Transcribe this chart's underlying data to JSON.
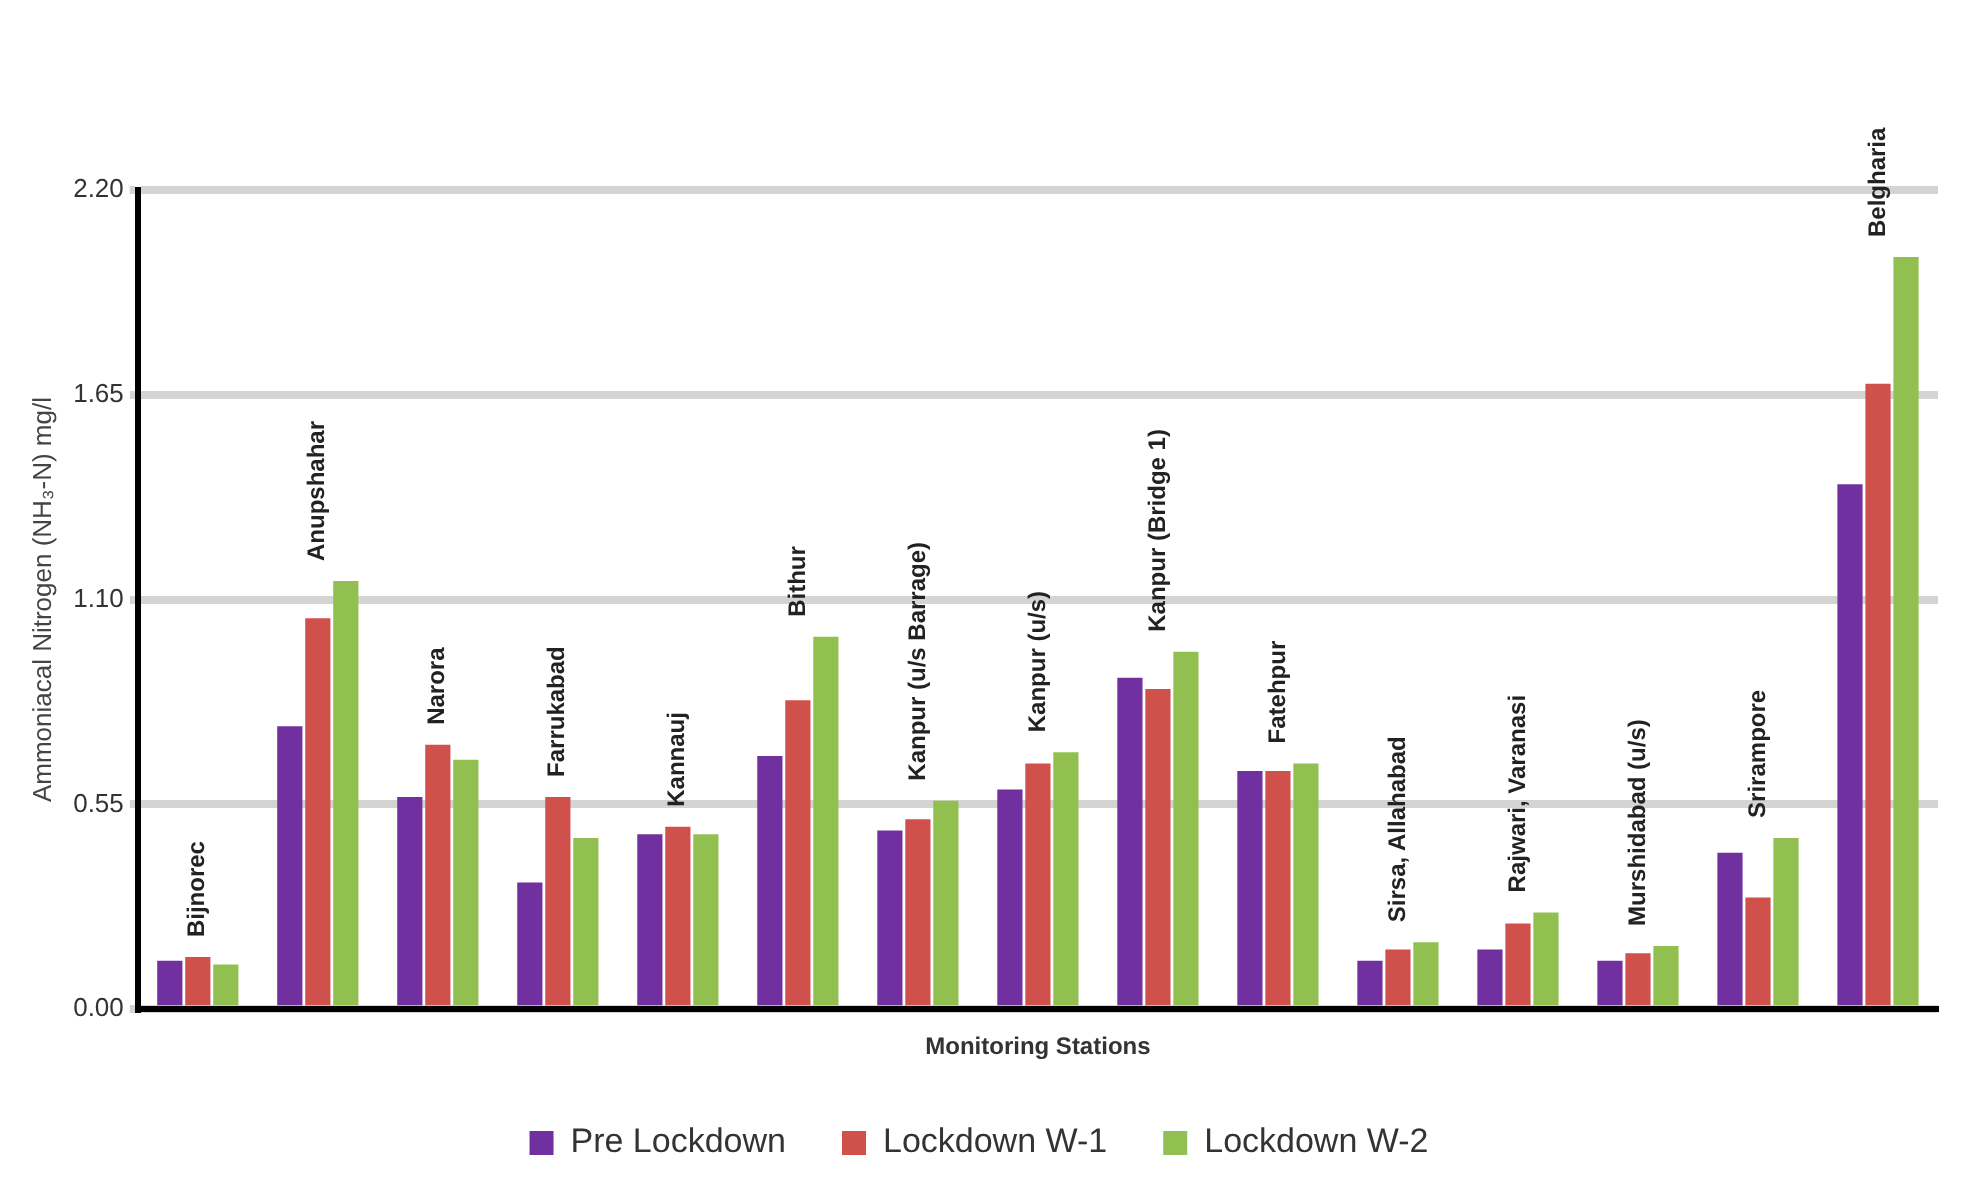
{
  "chart_data": {
    "type": "bar",
    "xlabel": "Monitoring Stations",
    "ylabel": "Ammoniacal Nitrogen (NH₃-N) mg/l",
    "categories": [
      "Bijnorec",
      "Anupshahar",
      "Narora",
      "Farrukabad",
      "Kannauj",
      "Bithur",
      "Kanpur (u/s Barrage)",
      "Kanpur (u/s)",
      "Kanpur (Bridge 1)",
      "Fatehpur",
      "Sirsa, Allahabad",
      "Rajwari, Varanasi",
      "Murshidabad (u/s)",
      "Srirampore",
      "Belgharia"
    ],
    "series": [
      {
        "name": "Pre Lockdown",
        "color": "#7030a0",
        "values": [
          0.13,
          0.76,
          0.57,
          0.34,
          0.47,
          0.68,
          0.48,
          0.59,
          0.89,
          0.64,
          0.13,
          0.16,
          0.13,
          0.42,
          1.41
        ]
      },
      {
        "name": "Lockdown W-1",
        "color": "#d0504c",
        "values": [
          0.14,
          1.05,
          0.71,
          0.57,
          0.49,
          0.83,
          0.51,
          0.66,
          0.86,
          0.64,
          0.16,
          0.23,
          0.15,
          0.3,
          1.68
        ]
      },
      {
        "name": "Lockdown W-2",
        "color": "#92c050",
        "values": [
          0.12,
          1.15,
          0.67,
          0.46,
          0.47,
          1.0,
          0.56,
          0.69,
          0.96,
          0.66,
          0.18,
          0.26,
          0.17,
          0.46,
          2.02
        ]
      }
    ],
    "ylim": [
      0,
      2.2
    ],
    "yticks": [
      {
        "value": 0,
        "label": "0.00"
      },
      {
        "value": 0.55,
        "label": "0.55"
      },
      {
        "value": 1.1,
        "label": "1.10"
      },
      {
        "value": 1.65,
        "label": "1.65"
      },
      {
        "value": 2.2,
        "label": "2.20"
      }
    ],
    "grid": "y",
    "legend": "bottom"
  }
}
